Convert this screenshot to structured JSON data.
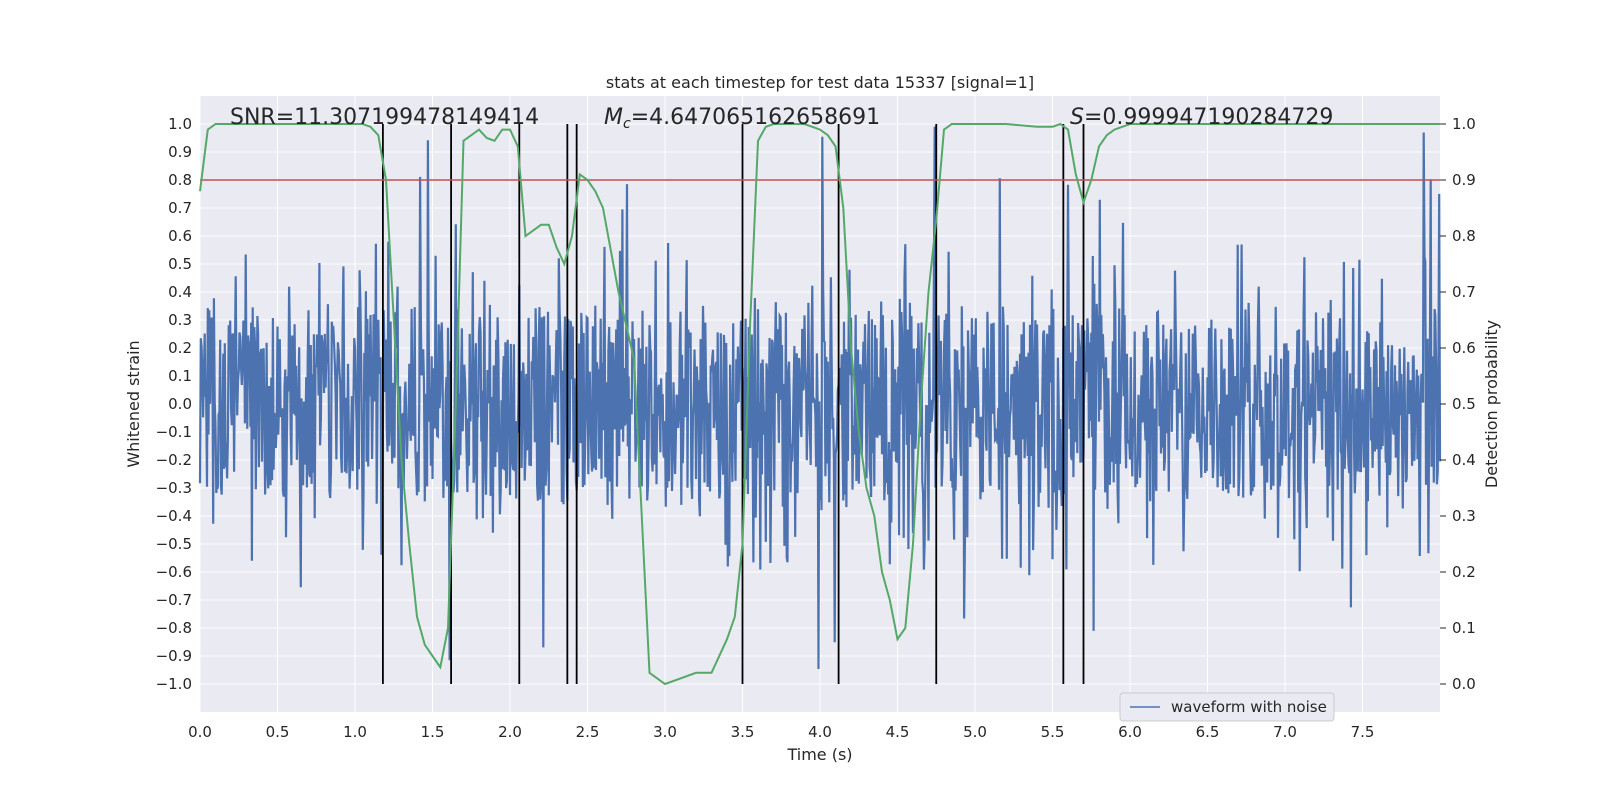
{
  "chart_data": {
    "type": "line",
    "title": "stats at each timestep for test data 15337 [signal=1]",
    "xlabel": "Time (s)",
    "ylabel": "Whitened strain",
    "ylabel_right": "Detection probability",
    "xlim": [
      0.0,
      8.0
    ],
    "ylim": [
      -1.1,
      1.1
    ],
    "ylim_right": [
      -0.05,
      1.05
    ],
    "x_ticks": [
      "0.0",
      "0.5",
      "1.0",
      "1.5",
      "2.0",
      "2.5",
      "3.0",
      "3.5",
      "4.0",
      "4.5",
      "5.0",
      "5.5",
      "6.0",
      "6.5",
      "7.0",
      "7.5"
    ],
    "x_tick_values": [
      0.0,
      0.5,
      1.0,
      1.5,
      2.0,
      2.5,
      3.0,
      3.5,
      4.0,
      4.5,
      5.0,
      5.5,
      6.0,
      6.5,
      7.0,
      7.5
    ],
    "y_ticks": [
      "1.0",
      "0.9",
      "0.8",
      "0.7",
      "0.6",
      "0.5",
      "0.4",
      "0.3",
      "0.2",
      "0.1",
      "0.0",
      "−0.1",
      "−0.2",
      "−0.3",
      "−0.4",
      "−0.5",
      "−0.6",
      "−0.7",
      "−0.8",
      "−0.9",
      "−1.0"
    ],
    "y_tick_values": [
      1.0,
      0.9,
      0.8,
      0.7,
      0.6,
      0.5,
      0.4,
      0.3,
      0.2,
      0.1,
      0.0,
      -0.1,
      -0.2,
      -0.3,
      -0.4,
      -0.5,
      -0.6,
      -0.7,
      -0.8,
      -0.9,
      -1.0
    ],
    "y_ticks_right": [
      "1.0",
      "0.9",
      "0.8",
      "0.7",
      "0.6",
      "0.5",
      "0.4",
      "0.3",
      "0.2",
      "0.1",
      "0.0"
    ],
    "y_tick_values_right": [
      1.0,
      0.9,
      0.8,
      0.7,
      0.6,
      0.5,
      0.4,
      0.3,
      0.2,
      0.1,
      0.0
    ],
    "annotations": {
      "snr": "SNR=11.307199478149414",
      "mc_symbol": "M",
      "mc_sub": "c",
      "mc_value": "=4.647065162658691",
      "s_symbol": "S",
      "s_value": "=0.999947190284729"
    },
    "threshold": 0.9,
    "vertical_lines_x": [
      1.18,
      1.62,
      2.06,
      2.37,
      2.43,
      3.5,
      4.12,
      4.75,
      5.57,
      5.7
    ],
    "series": [
      {
        "name": "waveform with noise",
        "axis": "left",
        "color": "#4c72b0",
        "in_legend": true,
        "note": "dense noisy strain, amplitude mostly within ±0.4 with spikes to ±1.0"
      },
      {
        "name": "detection probability",
        "axis": "right",
        "color": "#55a868",
        "in_legend": false,
        "x": [
          0.0,
          0.05,
          0.1,
          0.15,
          0.2,
          0.3,
          0.4,
          0.5,
          0.6,
          0.7,
          0.8,
          0.9,
          1.0,
          1.05,
          1.1,
          1.15,
          1.2,
          1.25,
          1.3,
          1.35,
          1.4,
          1.45,
          1.5,
          1.55,
          1.6,
          1.65,
          1.7,
          1.75,
          1.8,
          1.85,
          1.9,
          1.95,
          2.0,
          2.05,
          2.1,
          2.15,
          2.2,
          2.25,
          2.3,
          2.35,
          2.4,
          2.45,
          2.5,
          2.55,
          2.6,
          2.7,
          2.8,
          2.9,
          3.0,
          3.1,
          3.2,
          3.3,
          3.4,
          3.45,
          3.5,
          3.55,
          3.6,
          3.65,
          3.7,
          3.8,
          3.9,
          4.0,
          4.05,
          4.1,
          4.15,
          4.2,
          4.25,
          4.3,
          4.35,
          4.4,
          4.45,
          4.5,
          4.55,
          4.6,
          4.65,
          4.7,
          4.75,
          4.8,
          4.85,
          4.9,
          5.0,
          5.2,
          5.4,
          5.5,
          5.55,
          5.6,
          5.65,
          5.7,
          5.75,
          5.8,
          5.85,
          5.9,
          6.0,
          6.5,
          7.0,
          7.5,
          8.0
        ],
        "y": [
          0.88,
          0.99,
          1.0,
          1.0,
          1.0,
          1.0,
          1.0,
          1.0,
          1.0,
          1.0,
          1.0,
          1.0,
          1.0,
          1.0,
          0.995,
          0.98,
          0.9,
          0.65,
          0.4,
          0.25,
          0.12,
          0.07,
          0.05,
          0.03,
          0.1,
          0.5,
          0.97,
          0.98,
          0.99,
          0.975,
          0.97,
          0.99,
          0.99,
          0.96,
          0.8,
          0.81,
          0.82,
          0.82,
          0.78,
          0.75,
          0.8,
          0.91,
          0.9,
          0.88,
          0.85,
          0.7,
          0.58,
          0.02,
          0.0,
          0.01,
          0.02,
          0.02,
          0.08,
          0.12,
          0.25,
          0.65,
          0.97,
          0.995,
          1.0,
          1.0,
          1.0,
          0.99,
          0.98,
          0.96,
          0.85,
          0.6,
          0.45,
          0.35,
          0.3,
          0.2,
          0.15,
          0.08,
          0.1,
          0.25,
          0.5,
          0.7,
          0.83,
          0.99,
          1.0,
          1.0,
          1.0,
          1.0,
          0.995,
          0.995,
          1.0,
          0.99,
          0.91,
          0.86,
          0.9,
          0.96,
          0.98,
          0.99,
          1.0,
          1.0,
          1.0,
          1.0,
          1.0
        ]
      },
      {
        "name": "threshold",
        "axis": "right",
        "color": "#c44e52",
        "in_legend": false
      }
    ],
    "legend": {
      "position": "lower-right",
      "entries": [
        "waveform with noise"
      ]
    }
  }
}
